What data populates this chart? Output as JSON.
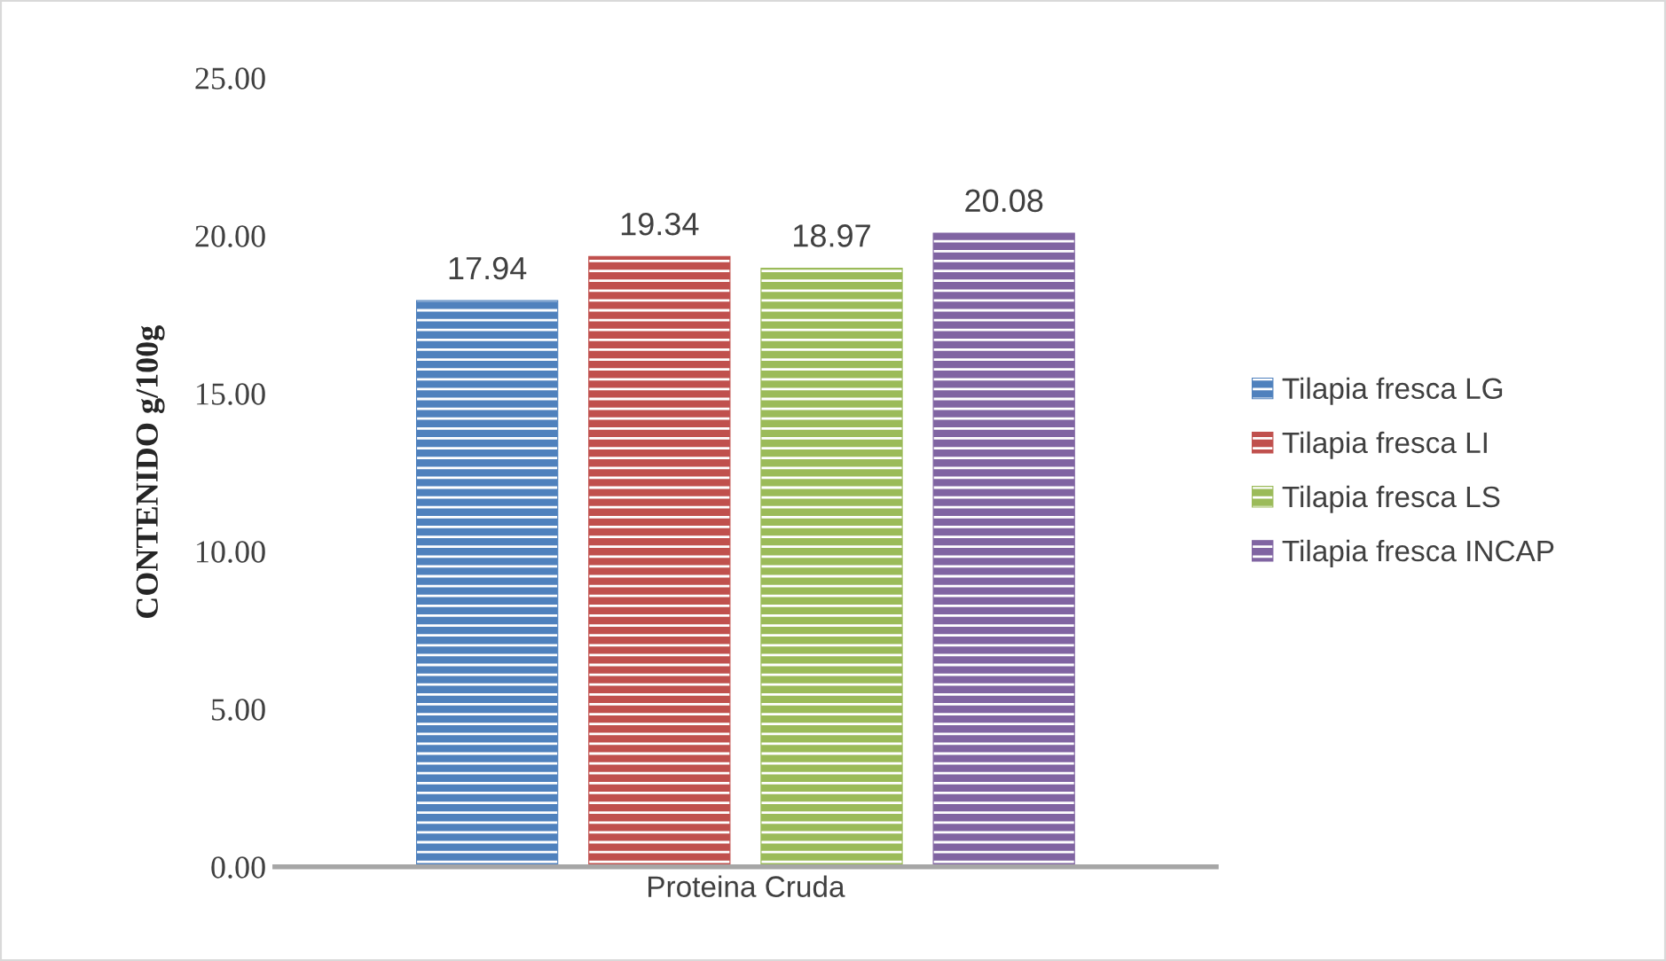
{
  "chart_data": {
    "type": "bar",
    "ylabel": "CONTENIDO g/100g",
    "categories": [
      "Proteina Cruda"
    ],
    "series": [
      {
        "name": "Tilapia fresca LG",
        "color": "#4f81bd",
        "values": [
          17.94
        ]
      },
      {
        "name": "Tilapia fresca LI",
        "color": "#c0504d",
        "values": [
          19.34
        ]
      },
      {
        "name": "Tilapia fresca LS",
        "color": "#9bbb59",
        "values": [
          18.97
        ]
      },
      {
        "name": "Tilapia fresca INCAP",
        "color": "#8064a2",
        "values": [
          20.08
        ]
      }
    ],
    "ylim": [
      0,
      25
    ],
    "yticks": [
      {
        "value": 0,
        "label": "0.00"
      },
      {
        "value": 5,
        "label": "5.00"
      },
      {
        "value": 10,
        "label": "10.00"
      },
      {
        "value": 15,
        "label": "15.00"
      },
      {
        "value": 20,
        "label": "20.00"
      },
      {
        "value": 25,
        "label": "25.00"
      }
    ],
    "data_labels": true,
    "legend": "right",
    "grid": false
  }
}
